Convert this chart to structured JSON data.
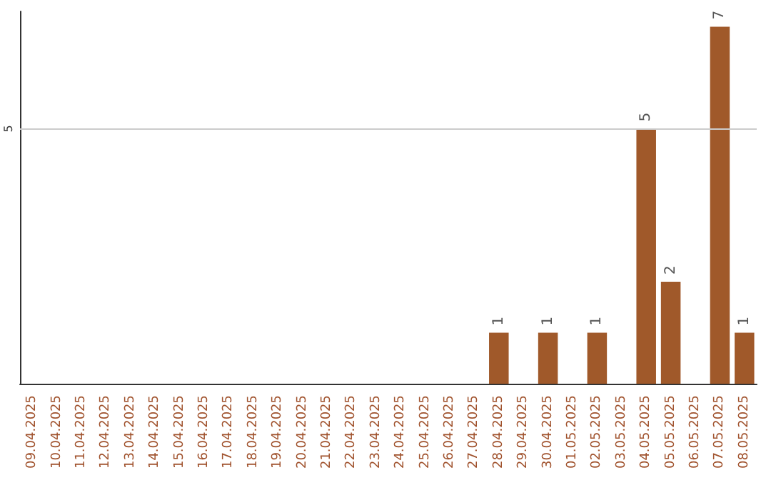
{
  "chart_data": {
    "type": "bar",
    "categories": [
      "09.04.2025",
      "10.04.2025",
      "11.04.2025",
      "12.04.2025",
      "13.04.2025",
      "14.04.2025",
      "15.04.2025",
      "16.04.2025",
      "17.04.2025",
      "18.04.2025",
      "19.04.2025",
      "20.04.2025",
      "21.04.2025",
      "22.04.2025",
      "23.04.2025",
      "24.04.2025",
      "25.04.2025",
      "26.04.2025",
      "27.04.2025",
      "28.04.2025",
      "29.04.2025",
      "30.04.2025",
      "01.05.2025",
      "02.05.2025",
      "03.05.2025",
      "04.05.2025",
      "05.05.2025",
      "06.05.2025",
      "07.05.2025",
      "08.05.2025"
    ],
    "values": [
      null,
      null,
      null,
      null,
      null,
      null,
      null,
      null,
      null,
      null,
      null,
      null,
      null,
      null,
      null,
      null,
      null,
      null,
      null,
      1,
      null,
      1,
      null,
      1,
      null,
      5,
      2,
      null,
      7,
      1
    ],
    "data_labels": true,
    "color": "#a0592a",
    "ylim": [
      0,
      7.3
    ],
    "yticks": [
      5
    ],
    "grid": "y"
  }
}
